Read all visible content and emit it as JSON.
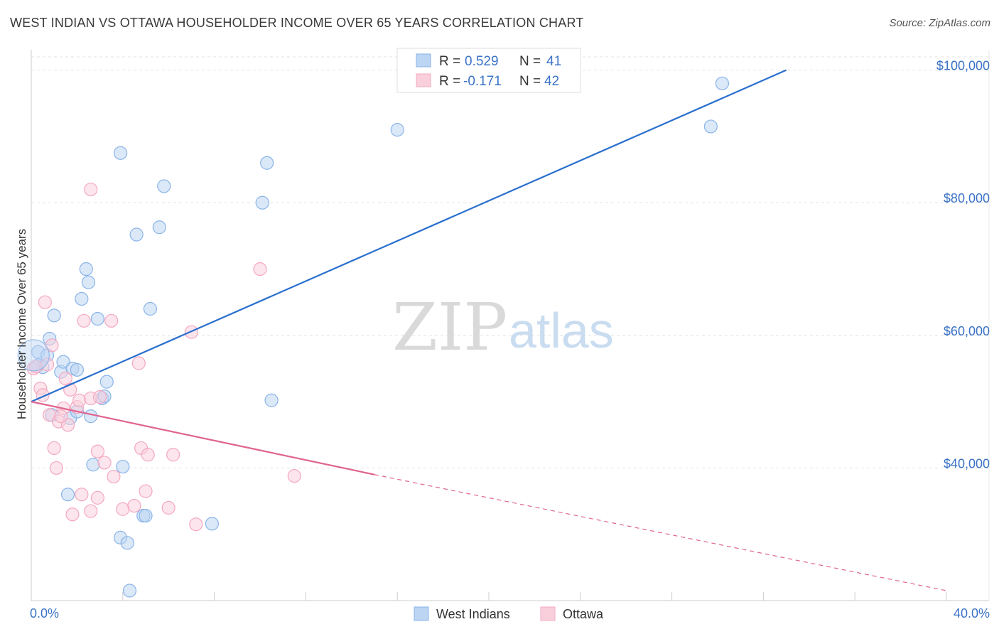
{
  "chart_data": {
    "type": "scatter",
    "title": "WEST INDIAN VS OTTAWA HOUSEHOLDER INCOME OVER 65 YEARS CORRELATION CHART",
    "source": "Source: ZipAtlas.com",
    "xlabel": "",
    "ylabel": "Householder Income Over 65 years",
    "xlim": [
      0,
      40
    ],
    "ylim": [
      20000,
      102000
    ],
    "x_tick_labels": [
      "0.0%",
      "40.0%"
    ],
    "y_ticks": [
      40000,
      60000,
      80000,
      100000
    ],
    "y_tick_labels": [
      "$40,000",
      "$60,000",
      "$80,000",
      "$100,000"
    ],
    "watermark": {
      "zip": "ZIP",
      "atlas": "atlas"
    },
    "legend": [
      {
        "r_label": "R = ",
        "r_value": "0.529",
        "n_label": "N = ",
        "n_value": "41"
      },
      {
        "r_label": "R = ",
        "r_value": "-0.171",
        "n_label": "N = ",
        "n_value": "42"
      }
    ],
    "series": [
      {
        "name": "West Indians",
        "color": "#8ab4e8",
        "line_color": "#2a6fce",
        "trend": {
          "x0": 0,
          "y0": 50000,
          "x1": 33,
          "y1": 100000
        },
        "points": [
          [
            0.3,
            57500
          ],
          [
            0.3,
            55500
          ],
          [
            0.5,
            55200
          ],
          [
            0.7,
            57000
          ],
          [
            0.8,
            59500
          ],
          [
            0.9,
            48000
          ],
          [
            1.0,
            63000
          ],
          [
            1.3,
            54500
          ],
          [
            1.4,
            56000
          ],
          [
            1.6,
            36000
          ],
          [
            1.7,
            47500
          ],
          [
            1.8,
            55000
          ],
          [
            2.0,
            54800
          ],
          [
            2.2,
            65500
          ],
          [
            2.4,
            70000
          ],
          [
            2.5,
            68000
          ],
          [
            2.6,
            47800
          ],
          [
            2.7,
            40500
          ],
          [
            2.9,
            62500
          ],
          [
            3.1,
            50500
          ],
          [
            3.2,
            50800
          ],
          [
            3.3,
            53000
          ],
          [
            3.9,
            87500
          ],
          [
            3.9,
            29500
          ],
          [
            4.0,
            40200
          ],
          [
            4.2,
            28700
          ],
          [
            4.3,
            21500
          ],
          [
            4.6,
            75200
          ],
          [
            4.9,
            32800
          ],
          [
            5.0,
            32800
          ],
          [
            5.2,
            64000
          ],
          [
            5.6,
            76300
          ],
          [
            5.8,
            82500
          ],
          [
            7.9,
            31600
          ],
          [
            10.1,
            80000
          ],
          [
            10.3,
            86000
          ],
          [
            10.5,
            50200
          ],
          [
            16.0,
            91000
          ],
          [
            29.7,
            91500
          ],
          [
            30.2,
            98000
          ],
          [
            2.0,
            48500
          ]
        ]
      },
      {
        "name": "Ottawa",
        "color": "#f4a8c0",
        "line_color": "#e0648f",
        "trend": {
          "x0": 0,
          "y0": 50000,
          "x1": 15,
          "y1": 39000
        },
        "trend_dashed": {
          "x0": 15,
          "y0": 39000,
          "x1": 40,
          "y1": 21500
        },
        "points": [
          [
            0.1,
            55000
          ],
          [
            0.2,
            55300
          ],
          [
            0.4,
            52000
          ],
          [
            0.5,
            51000
          ],
          [
            0.6,
            65000
          ],
          [
            0.8,
            48000
          ],
          [
            0.9,
            58500
          ],
          [
            1.0,
            43000
          ],
          [
            1.1,
            40000
          ],
          [
            1.2,
            47000
          ],
          [
            1.4,
            49000
          ],
          [
            1.5,
            53500
          ],
          [
            1.6,
            46500
          ],
          [
            1.7,
            51800
          ],
          [
            1.8,
            33000
          ],
          [
            2.0,
            49200
          ],
          [
            2.1,
            50200
          ],
          [
            2.2,
            36000
          ],
          [
            2.3,
            62200
          ],
          [
            2.6,
            82000
          ],
          [
            2.6,
            50500
          ],
          [
            2.6,
            33500
          ],
          [
            2.9,
            42500
          ],
          [
            2.9,
            35500
          ],
          [
            3.2,
            40800
          ],
          [
            3.5,
            62200
          ],
          [
            3.6,
            38700
          ],
          [
            4.0,
            33800
          ],
          [
            4.5,
            34300
          ],
          [
            4.7,
            55800
          ],
          [
            4.8,
            43000
          ],
          [
            5.0,
            36500
          ],
          [
            5.1,
            42000
          ],
          [
            6.0,
            34000
          ],
          [
            6.2,
            42000
          ],
          [
            7.0,
            60500
          ],
          [
            7.2,
            31500
          ],
          [
            10.0,
            70000
          ],
          [
            11.5,
            38800
          ],
          [
            0.7,
            55600
          ],
          [
            1.3,
            47800
          ],
          [
            3.0,
            50700
          ]
        ]
      }
    ]
  }
}
